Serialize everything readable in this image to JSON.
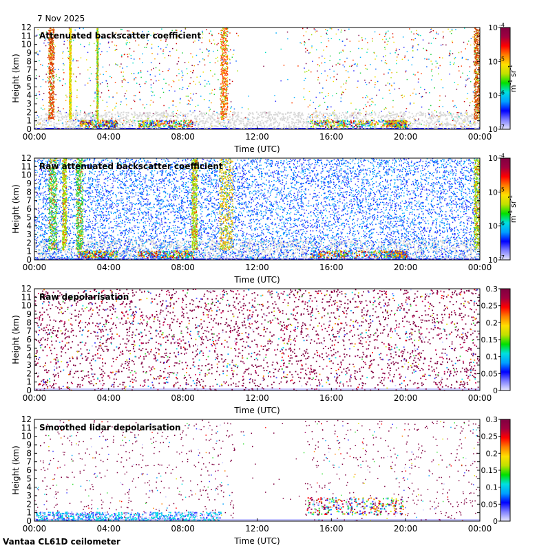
{
  "page": {
    "date": "7 Nov 2025",
    "footer": "Vantaa CL61D ceilometer"
  },
  "chart_data": [
    {
      "type": "heatmap",
      "title": "Attenuated backscatter coefficient",
      "xlabel": "Time (UTC)",
      "ylabel": "Height (km)",
      "xticks": [
        "00:00",
        "04:00",
        "08:00",
        "12:00",
        "16:00",
        "20:00",
        "00:00"
      ],
      "yticks": [
        "0",
        "1",
        "2",
        "3",
        "4",
        "5",
        "6",
        "7",
        "8",
        "9",
        "10",
        "11",
        "12"
      ],
      "ylim": [
        0,
        12
      ],
      "colorbar": {
        "scale": "log",
        "ticks": [
          "10",
          "10",
          "10",
          "10"
        ],
        "exponents": [
          "-4",
          "-5",
          "-6",
          "-7"
        ],
        "unit_main": "m",
        "unit_exp1": "-1",
        "unit_mid": " sr",
        "unit_exp2": "-1"
      }
    },
    {
      "type": "heatmap",
      "title": "Raw attenuated backscatter coefficient",
      "xlabel": "Time (UTC)",
      "ylabel": "Height (km)",
      "xticks": [
        "00:00",
        "04:00",
        "08:00",
        "12:00",
        "16:00",
        "20:00",
        "00:00"
      ],
      "yticks": [
        "0",
        "1",
        "2",
        "3",
        "4",
        "5",
        "6",
        "7",
        "8",
        "9",
        "10",
        "11",
        "12"
      ],
      "ylim": [
        0,
        12
      ],
      "colorbar": {
        "scale": "log",
        "ticks": [
          "10",
          "10",
          "10",
          "10"
        ],
        "exponents": [
          "-4",
          "-5",
          "-6",
          "-7"
        ],
        "unit_main": "m",
        "unit_exp1": "-1",
        "unit_mid": " sr",
        "unit_exp2": "-1"
      }
    },
    {
      "type": "heatmap",
      "title": "Raw depolarisation",
      "xlabel": "Time (UTC)",
      "ylabel": "Height (km)",
      "xticks": [
        "00:00",
        "04:00",
        "08:00",
        "12:00",
        "16:00",
        "20:00",
        "00:00"
      ],
      "yticks": [
        "0",
        "1",
        "2",
        "3",
        "4",
        "5",
        "6",
        "7",
        "8",
        "9",
        "10",
        "11",
        "12"
      ],
      "ylim": [
        0,
        12
      ],
      "colorbar": {
        "scale": "linear",
        "ticks": [
          "0.3",
          "0.25",
          "0.2",
          "0.15",
          "0.1",
          "0.05",
          "0"
        ]
      }
    },
    {
      "type": "heatmap",
      "title": "Smoothed lidar depolarisation",
      "xlabel": "Time (UTC)",
      "ylabel": "Height (km)",
      "xticks": [
        "00:00",
        "04:00",
        "08:00",
        "12:00",
        "16:00",
        "20:00",
        "00:00"
      ],
      "yticks": [
        "0",
        "1",
        "2",
        "3",
        "4",
        "5",
        "6",
        "7",
        "8",
        "9",
        "10",
        "11",
        "12"
      ],
      "ylim": [
        0,
        12
      ],
      "colorbar": {
        "scale": "linear",
        "ticks": [
          "0.3",
          "0.25",
          "0.2",
          "0.15",
          "0.1",
          "0.05",
          "0"
        ]
      }
    }
  ]
}
